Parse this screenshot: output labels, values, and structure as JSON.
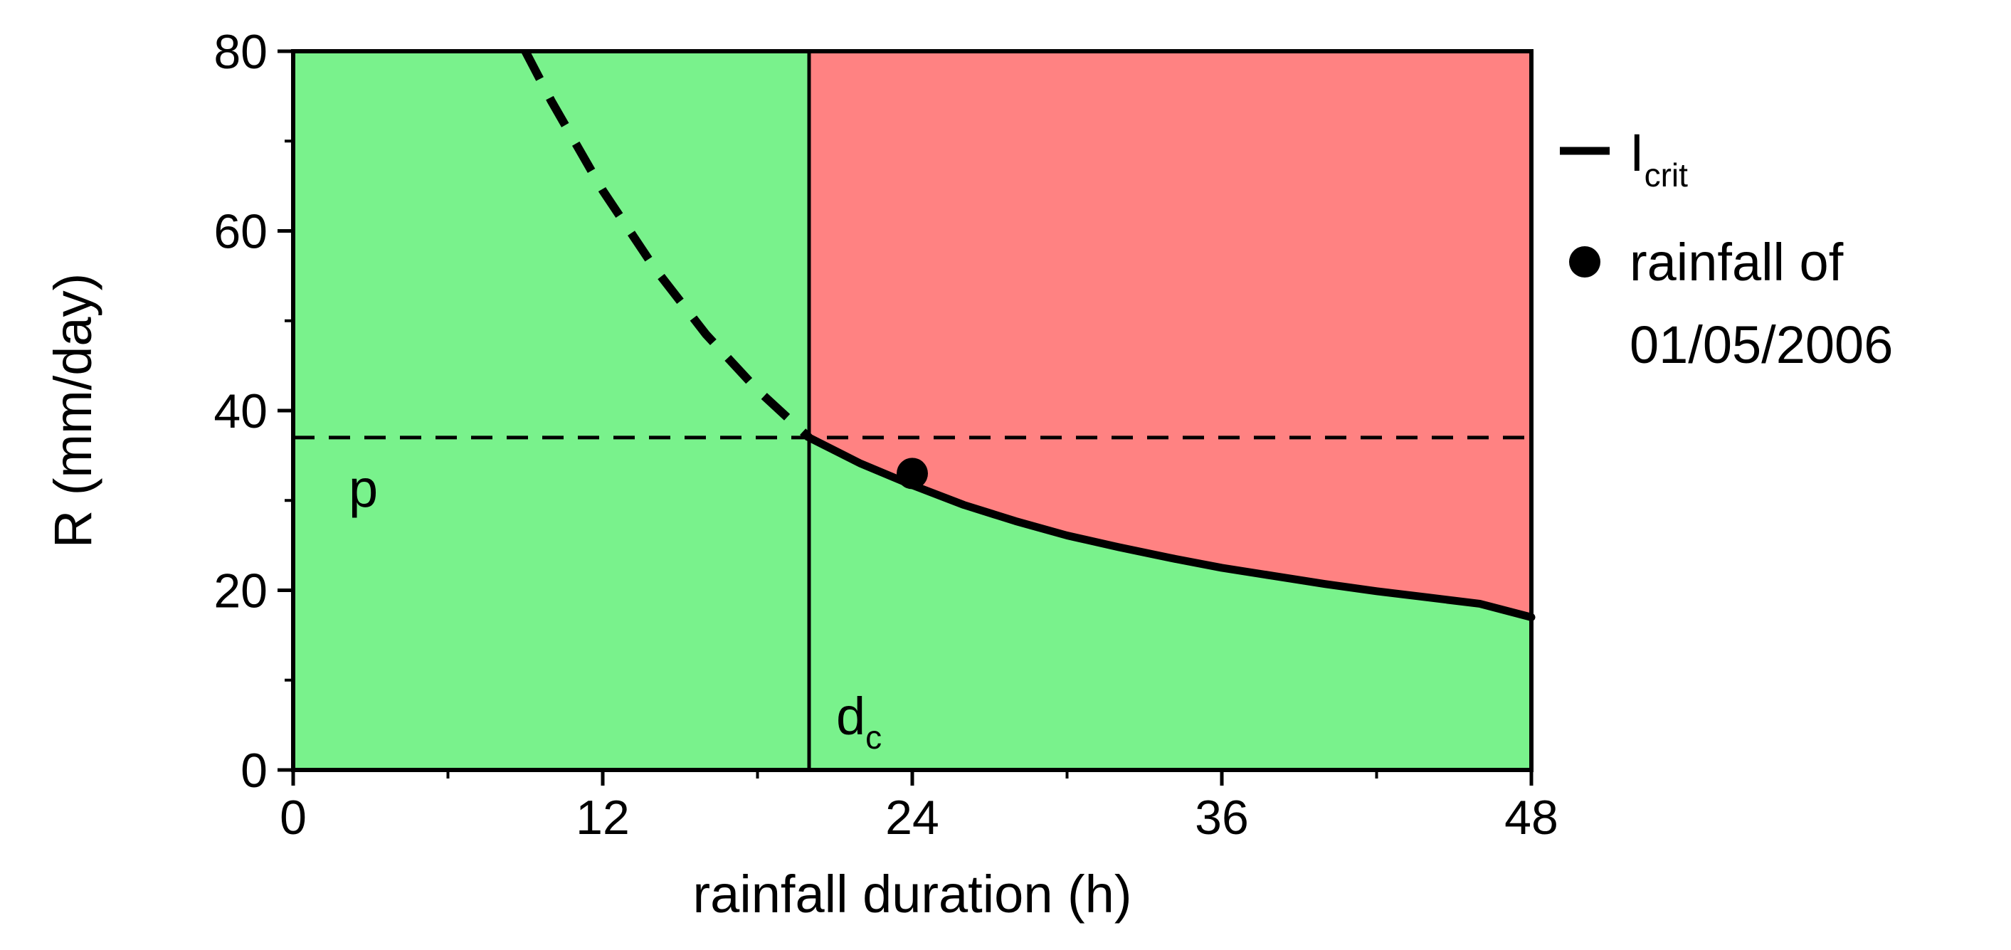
{
  "chart_data": {
    "type": "line",
    "xlabel": "rainfall duration (h)",
    "ylabel": "R (mm/day)",
    "xlim": [
      0,
      48
    ],
    "ylim": [
      0,
      80
    ],
    "xticks": [
      "0",
      "12",
      "24",
      "36",
      "48"
    ],
    "xtick_values": [
      0,
      12,
      24,
      36,
      48
    ],
    "yticks": [
      "0",
      "20",
      "40",
      "60",
      "80"
    ],
    "ytick_values": [
      0,
      20,
      40,
      60,
      80
    ],
    "grid": false,
    "legend_position": "right",
    "colors": {
      "safe_region": "#79f28c",
      "unsafe_region": "#ff8282",
      "line": "#000000"
    },
    "regions": {
      "safe_color": "#79f28c",
      "unsafe_color": "#ff8282"
    },
    "critical_duration": {
      "label": "d",
      "label_sub": "c",
      "x": 20
    },
    "threshold_p": {
      "label": "p",
      "y": 37
    },
    "series": [
      {
        "name_main": "I",
        "name_sub": "crit",
        "style": "solid",
        "x": [
          20,
          22,
          24,
          26,
          28,
          30,
          32,
          34,
          36,
          38,
          40,
          42,
          44,
          46,
          48
        ],
        "y": [
          37.0,
          34.1,
          31.7,
          29.5,
          27.7,
          26.1,
          24.8,
          23.6,
          22.5,
          21.6,
          20.7,
          19.9,
          19.2,
          18.5,
          17.0
        ]
      },
      {
        "name": "",
        "style": "dashed",
        "x": [
          9,
          10,
          12,
          14,
          16,
          18,
          20
        ],
        "y": [
          80.0,
          74.5,
          64.5,
          55.9,
          48.5,
          42.3,
          37.0
        ]
      }
    ],
    "points": [
      {
        "legend_line1": "rainfall of",
        "legend_line2": "01/05/2006",
        "x": 24,
        "y": 33
      }
    ]
  }
}
